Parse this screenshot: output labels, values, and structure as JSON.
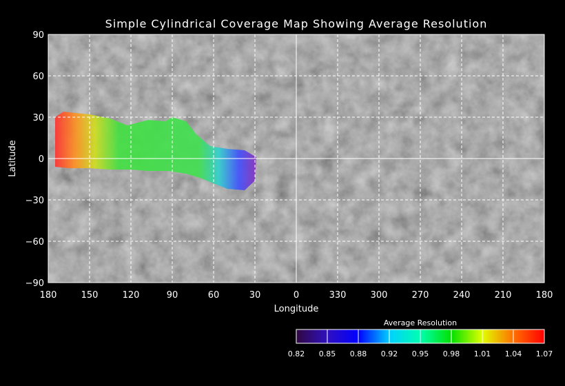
{
  "title": "Simple Cylindrical Coverage Map Showing Average Resolution",
  "chart_data": {
    "type": "heatmap",
    "title": "Simple Cylindrical Coverage Map Showing Average Resolution",
    "xlabel": "Longitude",
    "ylabel": "Latitude",
    "x_ticks": [
      "180",
      "150",
      "120",
      "90",
      "60",
      "30",
      "0",
      "330",
      "300",
      "270",
      "240",
      "210",
      "180"
    ],
    "y_ticks": [
      "90",
      "60",
      "30",
      "0",
      "-30",
      "-60",
      "-90"
    ],
    "ylim": [
      -90,
      90
    ],
    "grid": true,
    "colorbar": {
      "title": "Average Resolution",
      "ticks": [
        "0.82",
        "0.85",
        "0.88",
        "0.92",
        "0.95",
        "0.98",
        "1.01",
        "1.04",
        "1.07"
      ],
      "colors": [
        "#3a0a50",
        "#2020ff",
        "#0090ff",
        "#00ffd0",
        "#00e000",
        "#a0ff00",
        "#ffe000",
        "#ff6000",
        "#ff0000"
      ]
    }
  }
}
